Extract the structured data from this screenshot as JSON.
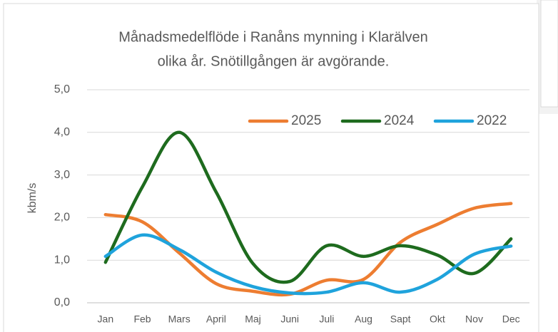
{
  "chart_data": {
    "type": "line",
    "title": "Månadsmedelflöde i Ranåns mynning i Klarälven",
    "subtitle": "olika år. Snötillgången är avgörande.",
    "y_label": "kbm/s",
    "categories": [
      "Jan",
      "Feb",
      "Mars",
      "April",
      "Maj",
      "Juni",
      "Juli",
      "Aug",
      "Sapt",
      "Okt",
      "Nov",
      "Dec"
    ],
    "series": [
      {
        "name": "2025",
        "color": "#ed7d31",
        "values": [
          2.07,
          1.9,
          1.17,
          0.45,
          0.27,
          0.2,
          0.53,
          0.55,
          1.42,
          1.84,
          2.22,
          2.33
        ]
      },
      {
        "name": "2024",
        "color": "#1e6b1e",
        "values": [
          0.95,
          2.72,
          4.0,
          2.6,
          0.92,
          0.5,
          1.34,
          1.09,
          1.34,
          1.12,
          0.69,
          1.5
        ]
      },
      {
        "name": "2022",
        "color": "#1fa3dc",
        "values": [
          1.09,
          1.59,
          1.25,
          0.72,
          0.38,
          0.23,
          0.25,
          0.47,
          0.25,
          0.55,
          1.14,
          1.33
        ]
      }
    ],
    "ylim": [
      0,
      5
    ],
    "yticks": [
      {
        "value": 0,
        "label": "0,0"
      },
      {
        "value": 1,
        "label": "1,0"
      },
      {
        "value": 2,
        "label": "2,0"
      },
      {
        "value": 3,
        "label": "3,0"
      },
      {
        "value": 4,
        "label": "4,0"
      },
      {
        "value": 5,
        "label": "5,0"
      }
    ],
    "grid": true,
    "smooth": true,
    "legend": "top-right"
  }
}
